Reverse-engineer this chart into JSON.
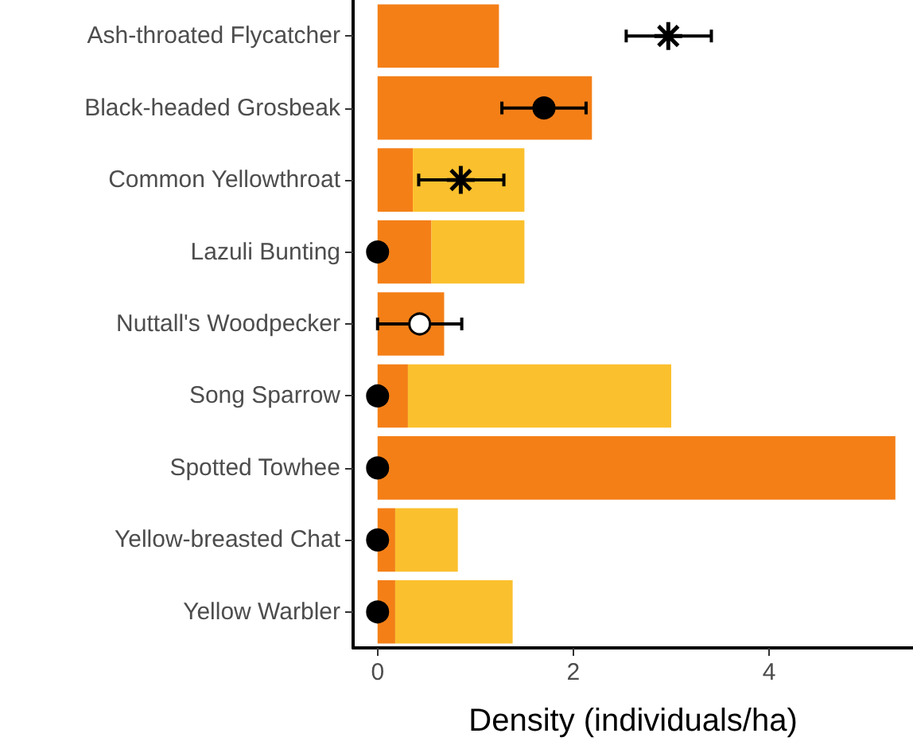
{
  "chart_data": {
    "type": "bar",
    "orientation": "horizontal",
    "stacked": true,
    "xlabel": "Density (individuals/ha)",
    "categories": [
      "Ash-throated Flycatcher",
      "Black-headed Grosbeak",
      "Common Yellowthroat",
      "Lazuli Bunting",
      "Nuttall's Woodpecker",
      "Song Sparrow",
      "Spotted Towhee",
      "Yellow-breasted Chat",
      "Yellow Warbler"
    ],
    "series": [
      {
        "color": "#f47f17",
        "values": [
          1.24,
          2.19,
          0.36,
          0.55,
          0.68,
          0.31,
          5.29,
          0.18,
          0.18
        ]
      },
      {
        "color": "#fbc02d",
        "values": [
          null,
          null,
          1.14,
          0.95,
          null,
          2.69,
          null,
          0.64,
          1.2
        ]
      },
      {
        "type": "scatter",
        "marker": "star",
        "color": "#000000",
        "x": [
          "Ash-throated Flycatcher",
          "Common Yellowthroat"
        ],
        "values": [
          2.97,
          0.85
        ],
        "errors": [
          [
            2.54,
            3.41
          ],
          [
            0.42,
            1.29
          ]
        ]
      },
      {
        "type": "scatter",
        "marker": "circle",
        "color": "#000000",
        "x": [
          "Black-headed Grosbeak",
          "Lazuli Bunting",
          "Song Sparrow",
          "Spotted Towhee",
          "Yellow-breasted Chat",
          "Yellow Warbler"
        ],
        "values": [
          1.7,
          0,
          0,
          0,
          0,
          0
        ],
        "errors": [
          [
            1.27,
            2.13
          ],
          null,
          null,
          null,
          null,
          null
        ]
      },
      {
        "type": "scatter",
        "marker": "circle",
        "color": "#ffffff",
        "x": [
          "Nuttall's Woodpecker"
        ],
        "values": [
          0.43
        ],
        "errors": [
          [
            0,
            0.86
          ]
        ]
      }
    ],
    "xlim": [
      -0.25,
      5.47
    ],
    "xticks": [
      0,
      2,
      4
    ],
    "grid": false
  }
}
